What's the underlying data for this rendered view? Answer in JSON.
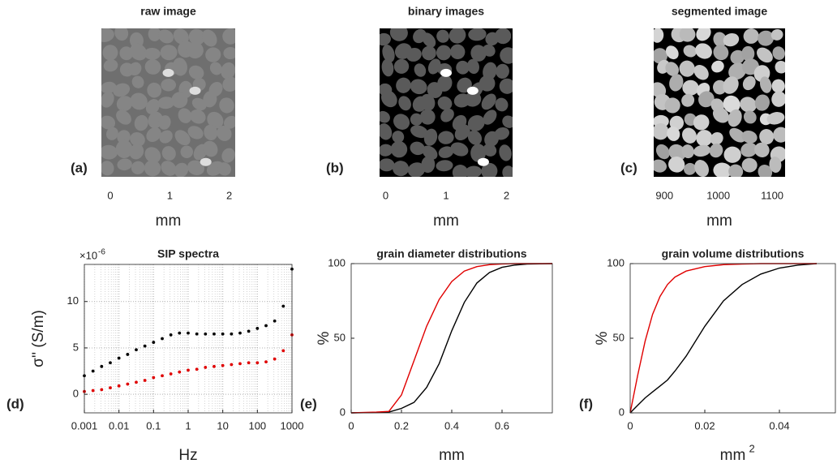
{
  "chart_data": [
    {
      "type": "image",
      "title": "raw image",
      "panel_label": "(a)",
      "xlim": [
        -0.15,
        2.1
      ],
      "xticks": [
        0,
        1,
        2
      ],
      "x_label": "mm"
    },
    {
      "type": "image",
      "title": "binary images",
      "panel_label": "(b)",
      "xlim": [
        -0.1,
        2.1
      ],
      "xticks": [
        0,
        1,
        2
      ],
      "x_label": "mm"
    },
    {
      "type": "image",
      "title": "segmented image",
      "panel_label": "(c)",
      "xlim": [
        880,
        1124
      ],
      "xticks": [
        900,
        1000,
        1100
      ],
      "x_label": "mm"
    },
    {
      "type": "scatter",
      "title": "SIP spectra",
      "panel_label": "(d)",
      "x_label": "Hz",
      "y_label": "σ'' (S/m)",
      "y_multiplier": "×10",
      "y_multiplier_exp": "-6",
      "x_scale": "log",
      "grid": true,
      "minor_grid": true,
      "xlim": [
        0.001,
        1000
      ],
      "xticks": [
        0.001,
        0.01,
        0.1,
        1,
        10,
        100,
        1000
      ],
      "ylim": [
        -2,
        14
      ],
      "yticks": [
        0,
        5,
        10
      ],
      "x": [
        0.001,
        0.00178,
        0.00316,
        0.00562,
        0.01,
        0.0178,
        0.0316,
        0.0562,
        0.1,
        0.178,
        0.316,
        0.562,
        1,
        1.78,
        3.16,
        5.62,
        10,
        17.8,
        31.6,
        56.2,
        100,
        178,
        316,
        562,
        1000
      ],
      "series": [
        {
          "color": "#000000",
          "values": [
            2.0,
            2.5,
            3.0,
            3.4,
            3.9,
            4.3,
            4.8,
            5.2,
            5.6,
            6.0,
            6.4,
            6.6,
            6.6,
            6.5,
            6.5,
            6.5,
            6.5,
            6.5,
            6.6,
            6.8,
            7.1,
            7.4,
            7.9,
            9.5,
            13.5
          ]
        },
        {
          "color": "#e00000",
          "values": [
            0.3,
            0.4,
            0.5,
            0.7,
            0.9,
            1.1,
            1.3,
            1.5,
            1.8,
            2.0,
            2.2,
            2.4,
            2.6,
            2.7,
            2.9,
            3.0,
            3.1,
            3.2,
            3.3,
            3.4,
            3.4,
            3.5,
            3.8,
            4.7,
            6.4
          ]
        }
      ]
    },
    {
      "type": "line",
      "title": "grain diameter distributions",
      "panel_label": "(e)",
      "x_label": "mm",
      "y_label": "%",
      "xlim": [
        0,
        0.8
      ],
      "xticks": [
        0,
        0.2,
        0.4,
        0.6
      ],
      "ylim": [
        0,
        100
      ],
      "yticks": [
        0,
        50,
        100
      ],
      "x": [
        0,
        0.1,
        0.15,
        0.2,
        0.25,
        0.3,
        0.35,
        0.4,
        0.45,
        0.5,
        0.55,
        0.6,
        0.65,
        0.7,
        0.8
      ],
      "series": [
        {
          "color": "#000000",
          "values": [
            0,
            0.2,
            0.5,
            3,
            7,
            17,
            33,
            55,
            74,
            87,
            94,
            97.5,
            99,
            99.7,
            100
          ]
        },
        {
          "color": "#e00000",
          "values": [
            0,
            0.5,
            1,
            12,
            35,
            58,
            76,
            88,
            95,
            98,
            99.3,
            99.8,
            100,
            100,
            100
          ]
        }
      ]
    },
    {
      "type": "line",
      "title": "grain volume distributions",
      "panel_label": "(f)",
      "x_label": "mm",
      "x_label_exp": "2",
      "y_label": "%",
      "xlim": [
        0,
        0.055
      ],
      "xticks": [
        0,
        0.02,
        0.04
      ],
      "ylim": [
        0,
        100
      ],
      "yticks": [
        0,
        50,
        100
      ],
      "x": [
        0,
        0.002,
        0.004,
        0.006,
        0.008,
        0.01,
        0.012,
        0.015,
        0.02,
        0.025,
        0.03,
        0.035,
        0.04,
        0.045,
        0.05
      ],
      "series": [
        {
          "color": "#000000",
          "values": [
            0,
            5,
            10,
            14,
            18,
            22,
            28,
            38,
            58,
            75,
            86,
            93,
            97,
            99,
            100
          ]
        },
        {
          "color": "#e00000",
          "values": [
            0,
            25,
            48,
            66,
            78,
            86,
            91,
            95,
            98,
            99.3,
            99.7,
            100,
            100,
            100,
            100
          ]
        }
      ]
    }
  ]
}
